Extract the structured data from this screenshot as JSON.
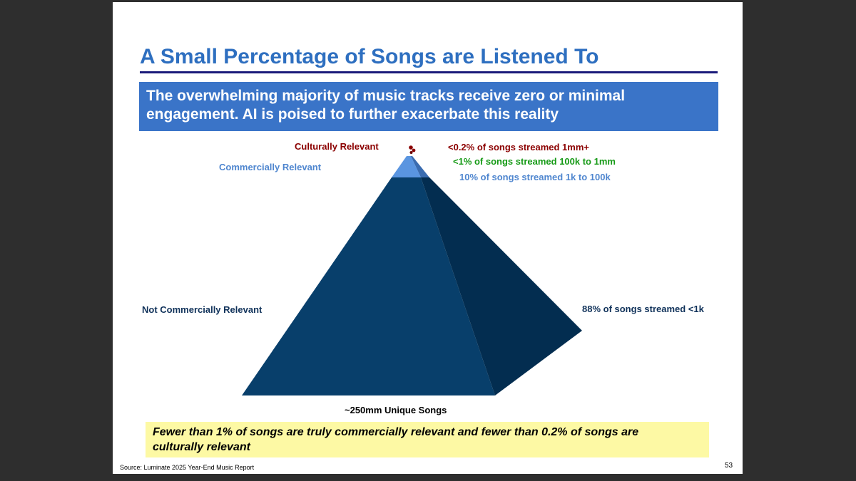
{
  "slide": {
    "title": "A Small Percentage of Songs are Listened To",
    "subtitle_lines": [
      "The overwhelming majority of music tracks receive zero or minimal",
      "engagement. AI is poised to further exacerbate this reality"
    ],
    "tiers": {
      "culturally_relevant": {
        "label": "Culturally Relevant",
        "stat": "<0.2% of songs streamed 1mm+",
        "color": "#8b0000"
      },
      "streamed_100k_1mm": {
        "stat": "<1% of songs streamed 100k to 1mm",
        "color": "#169a16"
      },
      "commercially_relevant": {
        "label": "Commercially Relevant",
        "stat": "10% of songs streamed 1k to 100k",
        "color": "#4f86cf"
      },
      "not_commercially_relevant": {
        "label": "Not Commercially Relevant",
        "stat": "88% of songs streamed <1k",
        "color": "#10325a"
      }
    },
    "base_label": "~250mm Unique Songs",
    "callout_lines": [
      "Fewer than 1% of songs are truly commercially relevant and fewer than 0.2% of songs are",
      "culturally relevant"
    ],
    "source": "Source: Luminate 2025 Year-End Music Report",
    "page_number": "53"
  }
}
